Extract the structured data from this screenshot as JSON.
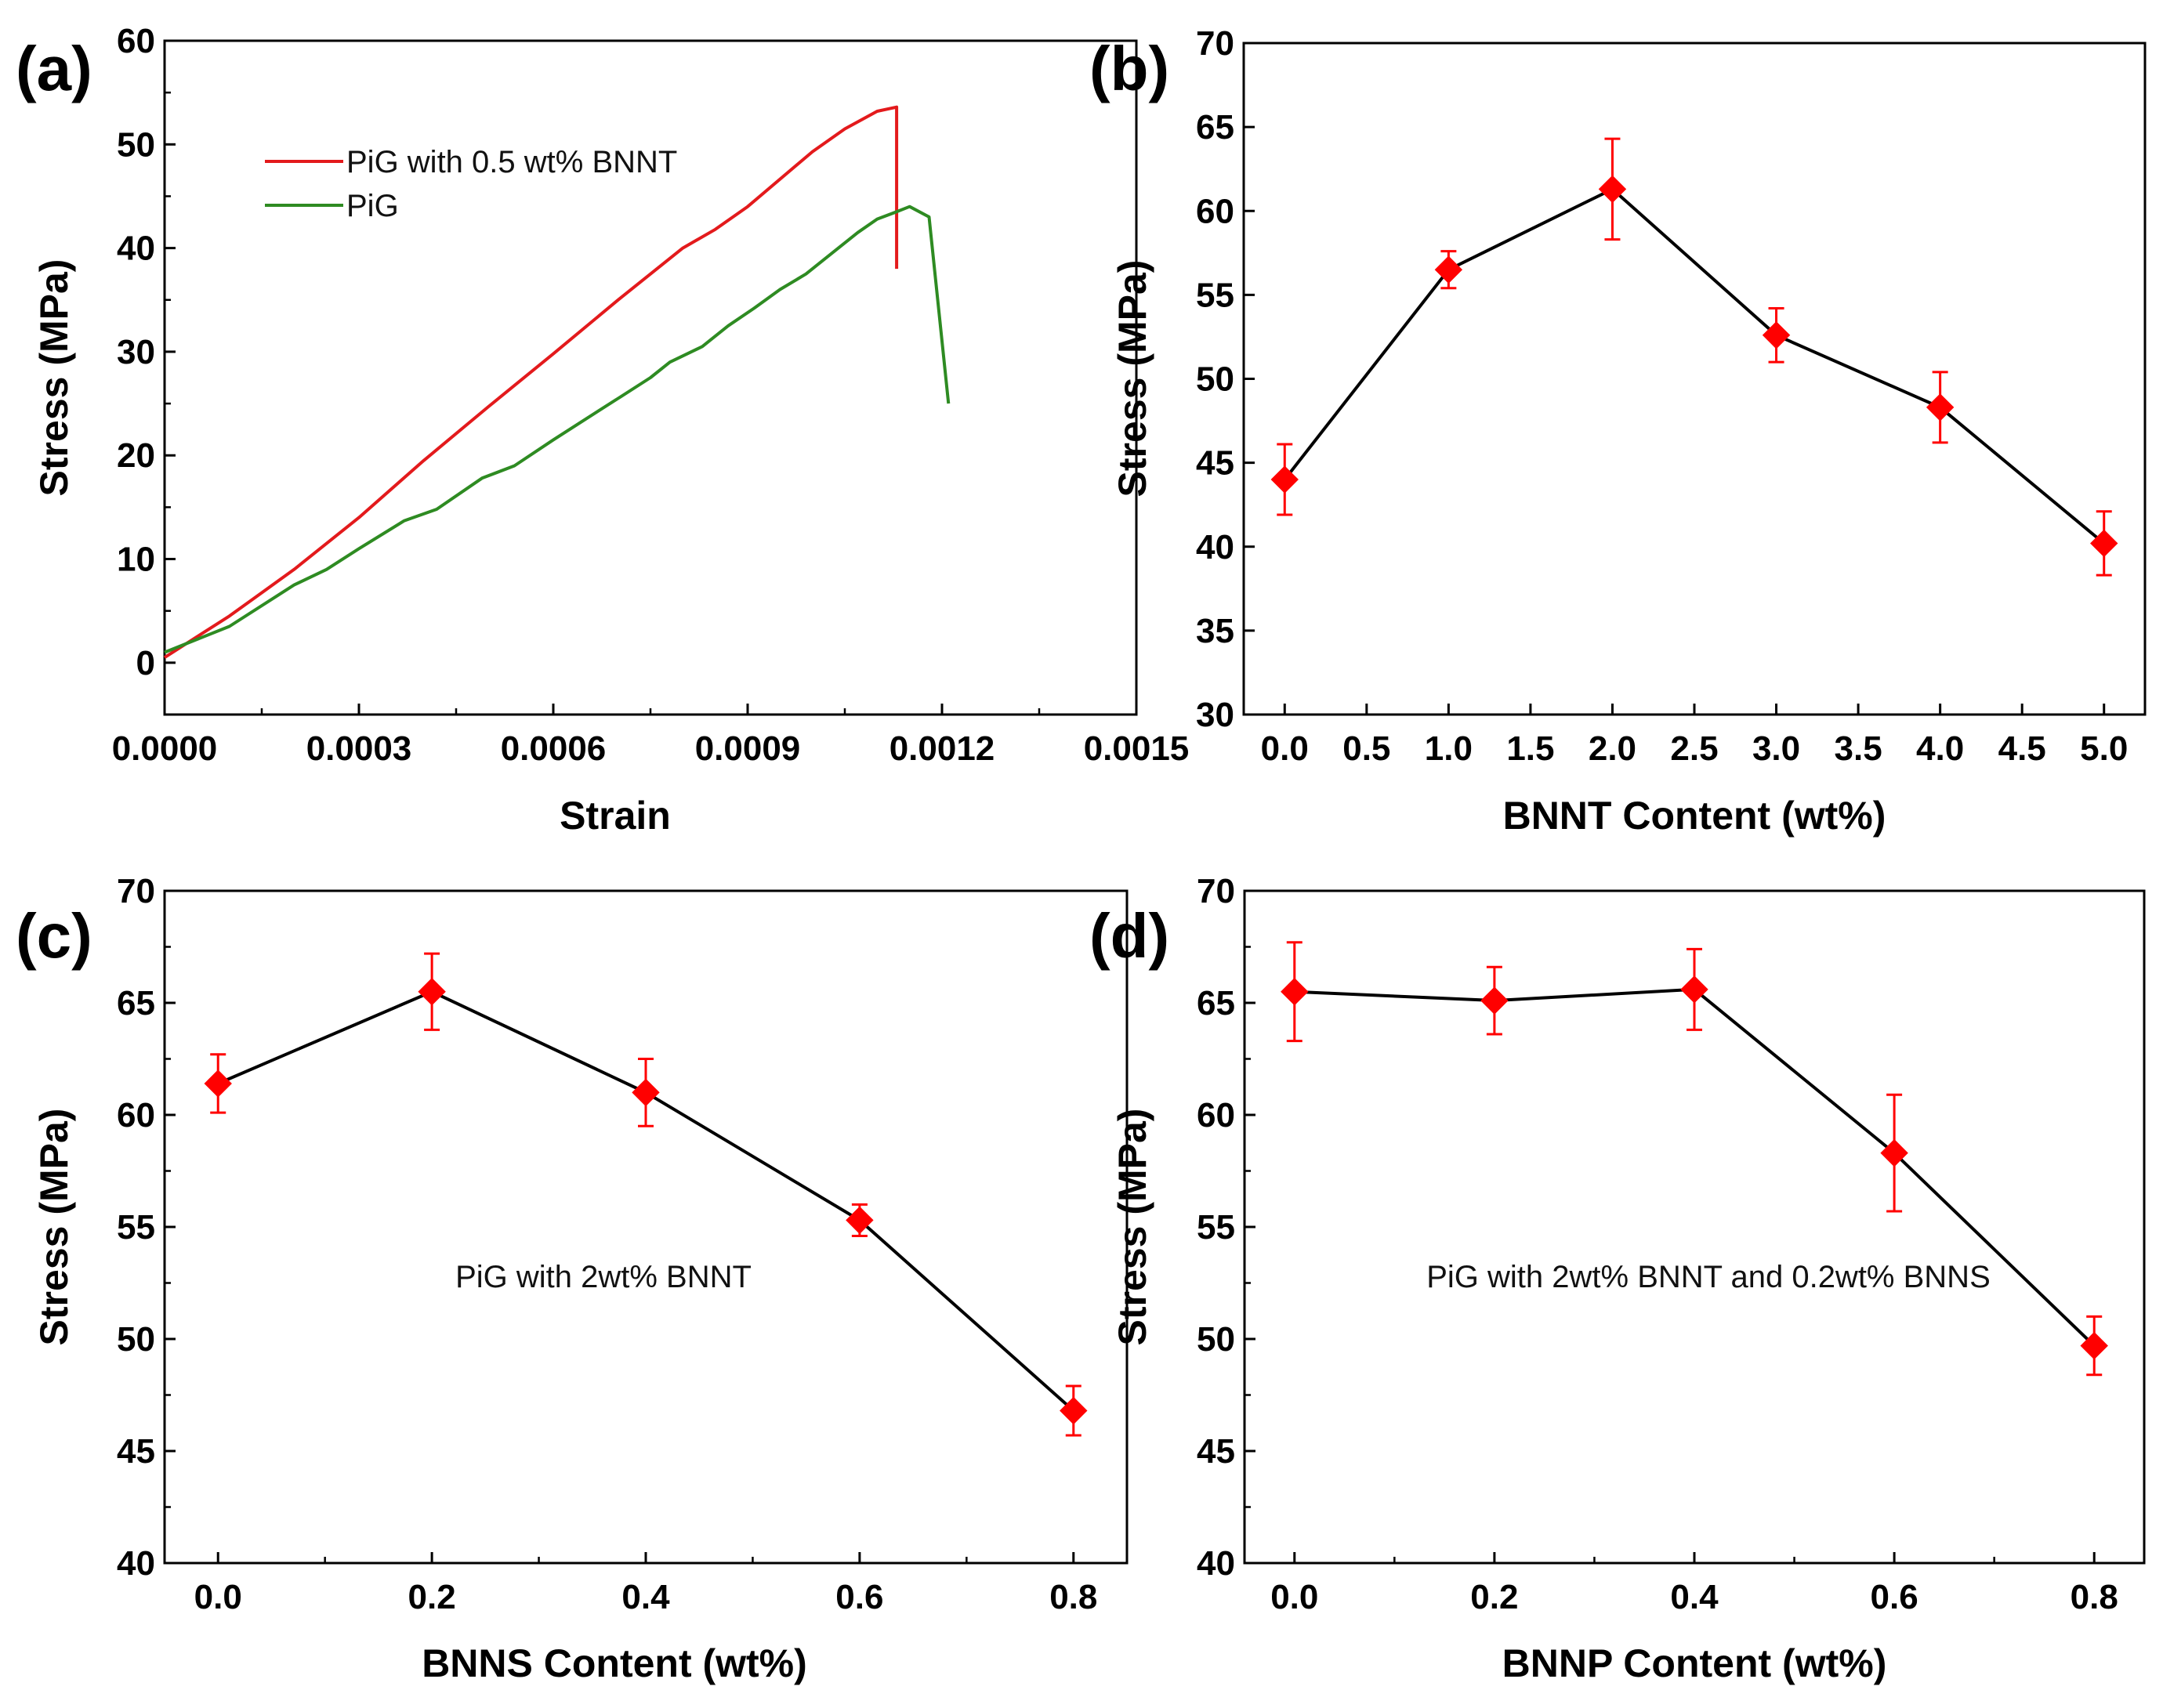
{
  "figure": {
    "background": "#ffffff"
  },
  "chart_data": [
    {
      "panel": "(a)",
      "type": "line",
      "title": "",
      "xlabel": "Strain",
      "ylabel": "Stress (MPa)",
      "xlim": [
        0,
        0.0015
      ],
      "ylim": [
        -5,
        60
      ],
      "xticks": [
        0,
        0.0003,
        0.0006,
        0.0009,
        0.0012,
        0.0015
      ],
      "xtick_labels": [
        "0.0000",
        "0.0003",
        "0.0006",
        "0.0009",
        "0.0012",
        "0.0015"
      ],
      "yticks": [
        0,
        10,
        20,
        30,
        40,
        50,
        60
      ],
      "ytick_labels": [
        "0",
        "10",
        "20",
        "30",
        "40",
        "50",
        "60"
      ],
      "legend_position": "upper-left",
      "series": [
        {
          "name": "PiG with 0.5 wt% BNNT",
          "color": "#e31a1c",
          "x": [
            0,
            0.0001,
            0.0002,
            0.0003,
            0.0004,
            0.0005,
            0.0006,
            0.0007,
            0.0008,
            0.00085,
            0.0009,
            0.001,
            0.00105,
            0.0011,
            0.00113,
            0.00113
          ],
          "y": [
            0.5,
            4.5,
            9.0,
            14.0,
            19.5,
            24.7,
            29.8,
            35.0,
            40.0,
            41.8,
            44.0,
            49.3,
            51.5,
            53.2,
            53.6,
            38.0
          ]
        },
        {
          "name": "PiG",
          "color": "#2e8b22",
          "x": [
            0,
            0.0001,
            0.0002,
            0.00025,
            0.0003,
            0.00037,
            0.00042,
            0.00049,
            0.00054,
            0.0006,
            0.00065,
            0.0007,
            0.00075,
            0.00078,
            0.00083,
            0.00087,
            0.00091,
            0.00095,
            0.00099,
            0.00103,
            0.00107,
            0.0011,
            0.00113,
            0.00115,
            0.00118,
            0.00121
          ],
          "y": [
            1.0,
            3.5,
            7.5,
            9.0,
            11.0,
            13.7,
            14.8,
            17.8,
            19.0,
            21.5,
            23.5,
            25.5,
            27.5,
            29.0,
            30.5,
            32.5,
            34.2,
            36.0,
            37.5,
            39.5,
            41.5,
            42.8,
            43.5,
            44.0,
            43.0,
            25.0
          ]
        }
      ]
    },
    {
      "panel": "(b)",
      "type": "line",
      "title": "",
      "xlabel": "BNNT Content (wt%)",
      "ylabel": "Stress (MPa)",
      "xlim": [
        -0.25,
        5.25
      ],
      "ylim": [
        30,
        70
      ],
      "xticks": [
        0,
        0.5,
        1,
        1.5,
        2,
        2.5,
        3,
        3.5,
        4,
        4.5,
        5
      ],
      "xtick_labels": [
        "0.0",
        "0.5",
        "1.0",
        "1.5",
        "2.0",
        "2.5",
        "3.0",
        "3.5",
        "4.0",
        "4.5",
        "5.0"
      ],
      "yticks": [
        30,
        35,
        40,
        45,
        50,
        55,
        60,
        65,
        70
      ],
      "ytick_labels": [
        "30",
        "35",
        "40",
        "45",
        "50",
        "55",
        "60",
        "65",
        "70"
      ],
      "series": [
        {
          "name": "Stress",
          "line_color": "#000000",
          "marker_color": "#ff0000",
          "marker": "diamond",
          "x": [
            0,
            1,
            2,
            3,
            4,
            5
          ],
          "y": [
            44.0,
            56.5,
            61.3,
            52.6,
            48.3,
            40.2
          ],
          "err": [
            2.1,
            1.1,
            3.0,
            1.6,
            2.1,
            1.9
          ]
        }
      ]
    },
    {
      "panel": "(c)",
      "type": "line",
      "title": "",
      "xlabel": "BNNS Content (wt%)",
      "ylabel": "Stress (MPa)",
      "xlim": [
        -0.05,
        0.85
      ],
      "ylim": [
        40,
        70
      ],
      "xticks": [
        0,
        0.2,
        0.4,
        0.6,
        0.8
      ],
      "xtick_labels": [
        "0.0",
        "0.2",
        "0.4",
        "0.6",
        "0.8"
      ],
      "yticks": [
        40,
        45,
        50,
        55,
        60,
        65,
        70
      ],
      "ytick_labels": [
        "40",
        "45",
        "50",
        "55",
        "60",
        "65",
        "70"
      ],
      "annotation": "PiG with  2wt%  BNNT",
      "series": [
        {
          "name": "Stress",
          "line_color": "#000000",
          "marker_color": "#ff0000",
          "marker": "diamond",
          "x": [
            0,
            0.2,
            0.4,
            0.6,
            0.8
          ],
          "y": [
            61.4,
            65.5,
            61.0,
            55.3,
            46.8
          ],
          "err": [
            1.3,
            1.7,
            1.5,
            0.7,
            1.1
          ]
        }
      ]
    },
    {
      "panel": "(d)",
      "type": "line",
      "title": "",
      "xlabel": "BNNP Content (wt%)",
      "ylabel": "Stress (MPa)",
      "xlim": [
        -0.05,
        0.85
      ],
      "ylim": [
        40,
        70
      ],
      "xticks": [
        0,
        0.2,
        0.4,
        0.6,
        0.8
      ],
      "xtick_labels": [
        "0.0",
        "0.2",
        "0.4",
        "0.6",
        "0.8"
      ],
      "yticks": [
        40,
        45,
        50,
        55,
        60,
        65,
        70
      ],
      "ytick_labels": [
        "40",
        "45",
        "50",
        "55",
        "60",
        "65",
        "70"
      ],
      "annotation": "PiG with  2wt%  BNNT and 0.2wt%  BNNS",
      "series": [
        {
          "name": "Stress",
          "line_color": "#000000",
          "marker_color": "#ff0000",
          "marker": "diamond",
          "x": [
            0,
            0.2,
            0.4,
            0.6,
            0.8
          ],
          "y": [
            65.5,
            65.1,
            65.6,
            58.3,
            49.7
          ],
          "err": [
            2.2,
            1.5,
            1.8,
            2.6,
            1.3
          ]
        }
      ]
    }
  ]
}
